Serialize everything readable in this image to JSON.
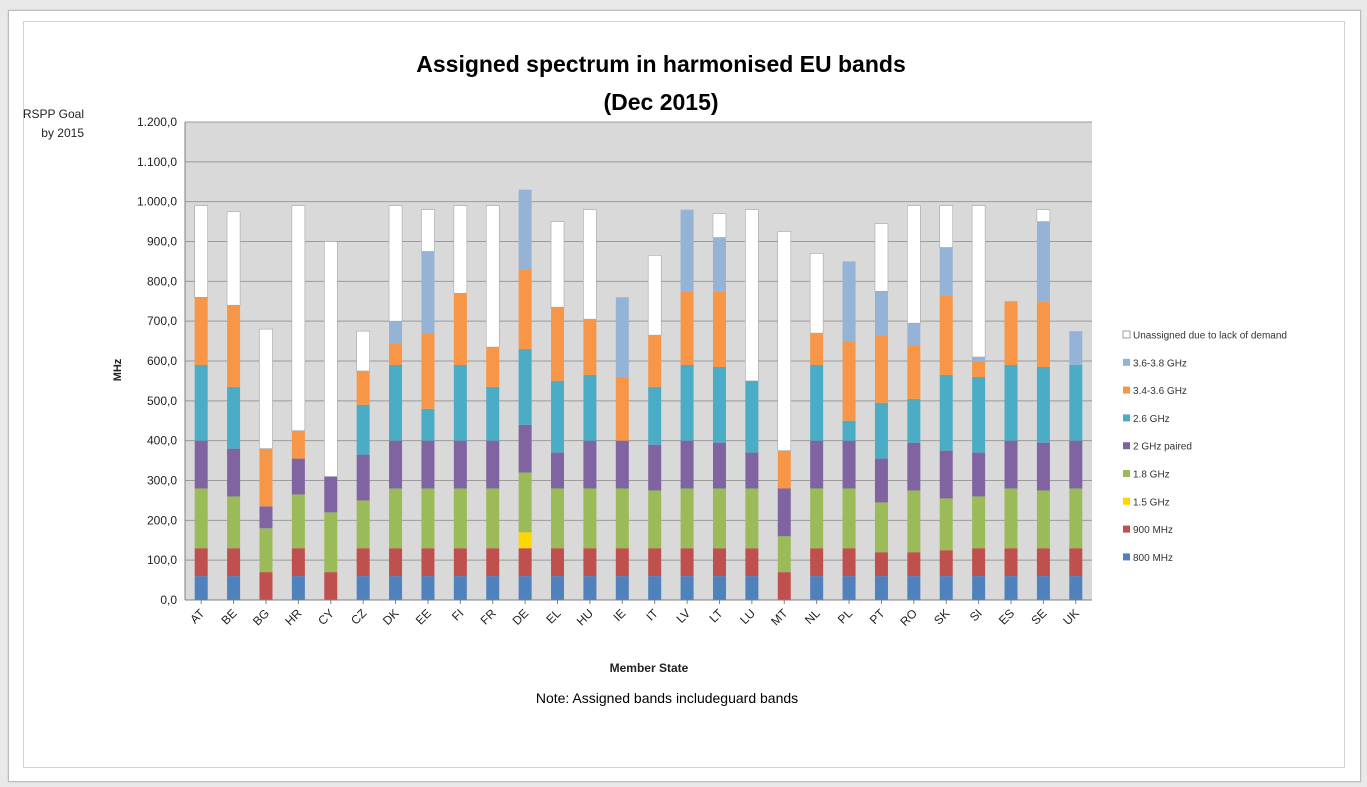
{
  "chart_data": {
    "type": "bar",
    "stacked": true,
    "title": "Assigned spectrum in harmonised EU bands",
    "subtitle": "(Dec 2015)",
    "xlabel": "Member State",
    "ylabel": "MHz",
    "note": "Note: Assigned bands includeguard bands",
    "goal_label_line1": "RSPP Goal",
    "goal_label_line2": "by 2015",
    "ylim": [
      0,
      1200
    ],
    "y_ticks": [
      0,
      100,
      200,
      300,
      400,
      500,
      600,
      700,
      800,
      900,
      1000,
      1100,
      1200
    ],
    "y_tick_labels": [
      "0,0",
      "100,0",
      "200,0",
      "300,0",
      "400,0",
      "500,0",
      "600,0",
      "700,0",
      "800,0",
      "900,0",
      "1.000,0",
      "1.100,0",
      "1.200,0"
    ],
    "grid": true,
    "plot_background": "#d9d9d9",
    "legend_position": "right",
    "categories": [
      "AT",
      "BE",
      "BG",
      "HR",
      "CY",
      "CZ",
      "DK",
      "EE",
      "FI",
      "FR",
      "DE",
      "EL",
      "HU",
      "IE",
      "IT",
      "LV",
      "LT",
      "LU",
      "MT",
      "NL",
      "PL",
      "PT",
      "RO",
      "SK",
      "SI",
      "ES",
      "SE",
      "UK"
    ],
    "series": [
      {
        "name": "800 MHz",
        "color": "#4f81bd",
        "values": [
          60,
          60,
          0,
          60,
          0,
          60,
          60,
          60,
          60,
          60,
          60,
          60,
          60,
          60,
          60,
          60,
          60,
          60,
          0,
          60,
          60,
          60,
          60,
          60,
          60,
          60,
          60,
          60
        ]
      },
      {
        "name": "900 MHz",
        "color": "#c0504d",
        "values": [
          70,
          70,
          70,
          70,
          70,
          70,
          70,
          70,
          70,
          70,
          70,
          70,
          70,
          70,
          70,
          70,
          70,
          70,
          70,
          70,
          70,
          60,
          60,
          65,
          70,
          70,
          70,
          70
        ]
      },
      {
        "name": "1.5 GHz",
        "color": "#ffd700",
        "values": [
          0,
          0,
          0,
          0,
          0,
          0,
          0,
          0,
          0,
          0,
          40,
          0,
          0,
          0,
          0,
          0,
          0,
          0,
          0,
          0,
          0,
          0,
          0,
          0,
          0,
          0,
          0,
          0
        ]
      },
      {
        "name": "1.8 GHz",
        "color": "#9bbb59",
        "values": [
          150,
          130,
          110,
          135,
          150,
          120,
          150,
          150,
          150,
          150,
          150,
          150,
          150,
          150,
          145,
          150,
          150,
          150,
          90,
          150,
          150,
          125,
          155,
          130,
          130,
          150,
          145,
          150
        ]
      },
      {
        "name": "2 GHz paired",
        "color": "#8064a2",
        "values": [
          120,
          120,
          55,
          90,
          90,
          115,
          120,
          120,
          120,
          120,
          120,
          90,
          120,
          120,
          115,
          120,
          115,
          90,
          120,
          120,
          120,
          110,
          120,
          120,
          110,
          120,
          120,
          120
        ]
      },
      {
        "name": "2.6 GHz",
        "color": "#4bacc6",
        "values": [
          190,
          155,
          0,
          0,
          0,
          125,
          190,
          80,
          190,
          135,
          190,
          180,
          165,
          0,
          145,
          190,
          190,
          180,
          0,
          190,
          50,
          140,
          110,
          190,
          190,
          190,
          190,
          190
        ]
      },
      {
        "name": "3.4-3.6 GHz",
        "color": "#f79646",
        "values": [
          170,
          205,
          145,
          70,
          0,
          85,
          55,
          190,
          180,
          100,
          200,
          185,
          140,
          160,
          130,
          185,
          190,
          0,
          95,
          80,
          200,
          170,
          135,
          200,
          40,
          160,
          165,
          0
        ]
      },
      {
        "name": "3.6-3.8 GHz",
        "color": "#95b3d7",
        "values": [
          0,
          0,
          0,
          0,
          0,
          0,
          55,
          205,
          0,
          0,
          200,
          0,
          0,
          200,
          0,
          205,
          135,
          0,
          0,
          0,
          200,
          110,
          55,
          120,
          10,
          0,
          200,
          85
        ]
      },
      {
        "name": "Unassigned due to lack of demand",
        "color": "#ffffff",
        "values": [
          230,
          235,
          300,
          565,
          590,
          100,
          290,
          105,
          220,
          355,
          0,
          215,
          275,
          0,
          200,
          0,
          60,
          430,
          550,
          200,
          0,
          170,
          295,
          105,
          380,
          0,
          30,
          0
        ]
      }
    ]
  }
}
